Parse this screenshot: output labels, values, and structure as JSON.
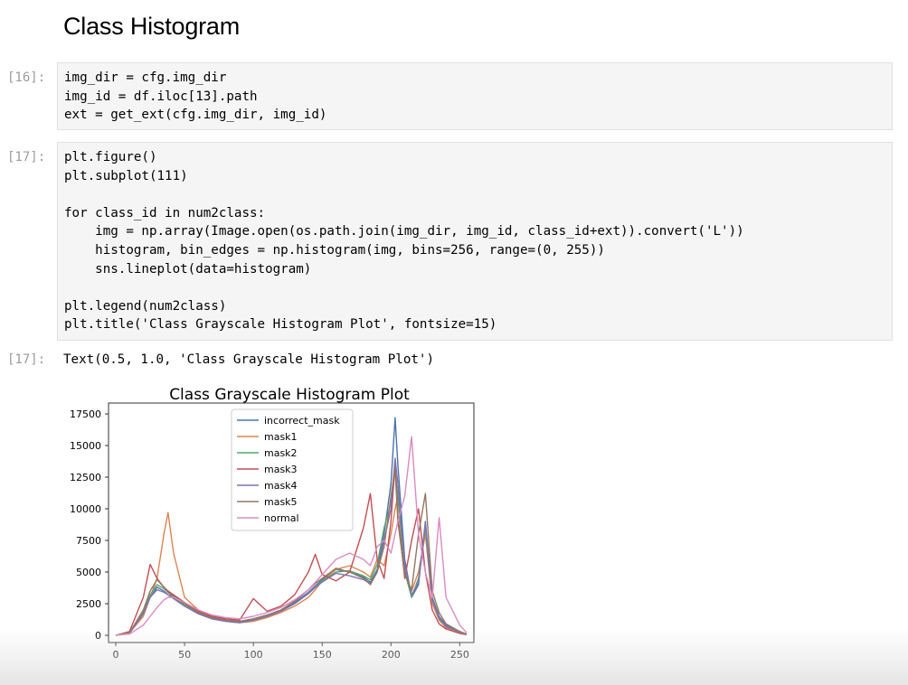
{
  "notebook": {
    "heading": "Class Histogram",
    "cells": [
      {
        "prompt": "[16]:",
        "lines": [
          "img_dir = cfg.img_dir",
          "img_id = df.iloc[13].path",
          "ext = get_ext(cfg.img_dir, img_id)"
        ]
      },
      {
        "prompt": "[17]:",
        "lines": [
          "plt.figure()",
          "plt.subplot(111)",
          "",
          "for class_id in num2class:",
          "    img = np.array(Image.open(os.path.join(img_dir, img_id, class_id+ext)).convert('L'))",
          "    histogram, bin_edges = np.histogram(img, bins=256, range=(0, 255))",
          "    sns.lineplot(data=histogram)",
          "",
          "plt.legend(num2class)",
          "plt.title('Class Grayscale Histogram Plot', fontsize=15)"
        ]
      }
    ],
    "output": {
      "prompt": "[17]:",
      "text": "Text(0.5, 1.0, 'Class Grayscale Histogram Plot')"
    }
  },
  "chart_data": {
    "type": "line",
    "title": "Class Grayscale Histogram Plot",
    "xlabel": "",
    "ylabel": "",
    "xlim": [
      0,
      255
    ],
    "ylim": [
      0,
      17500
    ],
    "xticks": [
      0,
      50,
      100,
      150,
      200,
      250
    ],
    "yticks": [
      0,
      2500,
      5000,
      7500,
      10000,
      12500,
      15000,
      17500
    ],
    "grid": false,
    "legend_position": "upper-center",
    "x": [
      0,
      10,
      20,
      25,
      30,
      35,
      38,
      42,
      50,
      60,
      70,
      80,
      90,
      100,
      110,
      120,
      130,
      140,
      145,
      150,
      160,
      170,
      180,
      185,
      190,
      195,
      200,
      203,
      205,
      210,
      215,
      220,
      225,
      230,
      235,
      240,
      250,
      255
    ],
    "series": [
      {
        "name": "incorrect_mask",
        "color": "#4c72b0",
        "values": [
          0,
          200,
          1800,
          3000,
          3800,
          3500,
          3200,
          3000,
          2500,
          1800,
          1400,
          1200,
          1100,
          1300,
          1600,
          2000,
          2600,
          3400,
          3900,
          4400,
          5200,
          5000,
          4600,
          4200,
          5200,
          8000,
          12000,
          17200,
          13500,
          6000,
          3000,
          4000,
          9000,
          3000,
          1500,
          800,
          300,
          100
        ]
      },
      {
        "name": "mask1",
        "color": "#dd8452",
        "values": [
          0,
          200,
          1500,
          3000,
          4500,
          8000,
          9700,
          6500,
          3000,
          2000,
          1500,
          1200,
          1000,
          1100,
          1400,
          1800,
          2300,
          3000,
          3600,
          4300,
          5200,
          5500,
          5000,
          4600,
          6000,
          5500,
          8000,
          10000,
          11000,
          5000,
          3500,
          5000,
          8000,
          2500,
          1200,
          600,
          200,
          50
        ]
      },
      {
        "name": "mask2",
        "color": "#55a868",
        "values": [
          0,
          200,
          1900,
          3200,
          4000,
          3700,
          3400,
          3000,
          2400,
          1700,
          1300,
          1100,
          1000,
          1200,
          1500,
          1900,
          2500,
          3300,
          3800,
          4300,
          5000,
          5100,
          4700,
          4400,
          5600,
          8500,
          10500,
          13000,
          11000,
          5000,
          3000,
          4500,
          8500,
          2800,
          1300,
          700,
          250,
          80
        ]
      },
      {
        "name": "mask3",
        "color": "#c44e52",
        "values": [
          0,
          300,
          3000,
          5600,
          4500,
          3800,
          3500,
          3200,
          2600,
          1900,
          1500,
          1300,
          1200,
          2900,
          1900,
          2300,
          3200,
          5000,
          6400,
          4800,
          4300,
          5000,
          8500,
          11200,
          6000,
          4500,
          9000,
          13500,
          9500,
          4500,
          7500,
          10000,
          5000,
          2000,
          900,
          500,
          150,
          50
        ]
      },
      {
        "name": "mask4",
        "color": "#8172b3",
        "values": [
          0,
          150,
          1700,
          3000,
          3600,
          3400,
          3200,
          2900,
          2300,
          1700,
          1300,
          1100,
          1000,
          1200,
          1500,
          1900,
          2500,
          3300,
          3800,
          4200,
          4900,
          4700,
          4400,
          4100,
          5000,
          7500,
          10000,
          14000,
          12000,
          5500,
          3200,
          4200,
          8800,
          2800,
          1400,
          700,
          250,
          80
        ]
      },
      {
        "name": "mask5",
        "color": "#937860",
        "values": [
          0,
          200,
          2000,
          3500,
          4400,
          3800,
          3400,
          3100,
          2500,
          1800,
          1400,
          1200,
          1100,
          1300,
          1600,
          2000,
          2700,
          3600,
          4100,
          4500,
          5300,
          5000,
          4500,
          4000,
          5000,
          7000,
          11000,
          13200,
          9000,
          4800,
          3600,
          8000,
          11200,
          3500,
          1800,
          900,
          300,
          100
        ]
      },
      {
        "name": "normal",
        "color": "#da8bc3",
        "values": [
          0,
          100,
          800,
          1500,
          2200,
          2800,
          3000,
          3000,
          2600,
          2000,
          1600,
          1400,
          1300,
          1500,
          1800,
          2200,
          2800,
          3600,
          4200,
          4800,
          6000,
          6500,
          6000,
          5500,
          7000,
          7500,
          6500,
          8000,
          9000,
          11000,
          15700,
          8000,
          5000,
          3000,
          9300,
          3000,
          800,
          200
        ]
      }
    ]
  }
}
